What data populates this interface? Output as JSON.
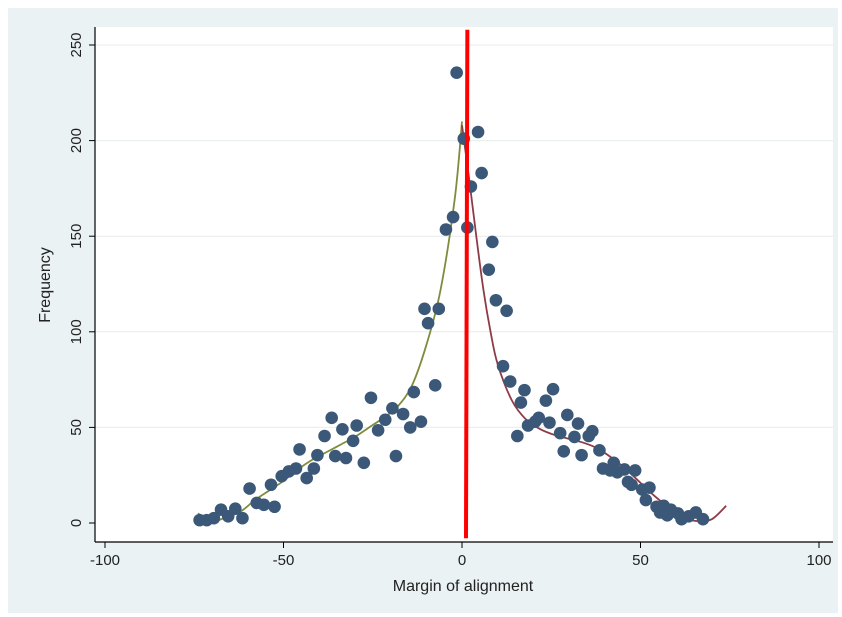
{
  "chart_data": {
    "type": "scatter",
    "title": "",
    "xlabel": "Margin of alignment",
    "ylabel": "Frequency",
    "xlim": [
      -100,
      100
    ],
    "ylim": [
      0,
      250
    ],
    "xticks": [
      -100,
      -50,
      0,
      50,
      100
    ],
    "xtick_labels": [
      "-100",
      "-50",
      "0",
      "50",
      "100"
    ],
    "yticks": [
      0,
      50,
      100,
      150,
      200,
      250
    ],
    "ytick_labels": [
      "0",
      "50",
      "100",
      "150",
      "200",
      "250"
    ],
    "grid": "horizontal",
    "legend": "none",
    "colors": {
      "panel_background": "#eaf2f3",
      "plot_background": "#ffffff",
      "gridline": "#e6ecec",
      "points": "#3b5878",
      "left_fit": "#7f8c3a",
      "right_fit": "#8e3b46",
      "cutoff_line": "#ff0000"
    },
    "points": [
      {
        "x": -73.5,
        "y": 1.5
      },
      {
        "x": -71.5,
        "y": 1.5
      },
      {
        "x": -69.5,
        "y": 2.5
      },
      {
        "x": -67.5,
        "y": 7
      },
      {
        "x": -65.5,
        "y": 3.5
      },
      {
        "x": -63.5,
        "y": 7.5
      },
      {
        "x": -61.5,
        "y": 2.5
      },
      {
        "x": -59.5,
        "y": 18
      },
      {
        "x": -57.5,
        "y": 10.5
      },
      {
        "x": -55.5,
        "y": 9.5
      },
      {
        "x": -53.5,
        "y": 20
      },
      {
        "x": -52.5,
        "y": 8.5
      },
      {
        "x": -50.5,
        "y": 24.5
      },
      {
        "x": -48.5,
        "y": 27
      },
      {
        "x": -46.5,
        "y": 28.5
      },
      {
        "x": -45.5,
        "y": 38.5
      },
      {
        "x": -43.5,
        "y": 23.5
      },
      {
        "x": -41.5,
        "y": 28.5
      },
      {
        "x": -40.5,
        "y": 35.5
      },
      {
        "x": -38.5,
        "y": 45.5
      },
      {
        "x": -36.5,
        "y": 55
      },
      {
        "x": -35.5,
        "y": 35
      },
      {
        "x": -33.5,
        "y": 49
      },
      {
        "x": -32.5,
        "y": 34
      },
      {
        "x": -30.5,
        "y": 43
      },
      {
        "x": -29.5,
        "y": 51
      },
      {
        "x": -27.5,
        "y": 31.5
      },
      {
        "x": -25.5,
        "y": 65.5
      },
      {
        "x": -23.5,
        "y": 48.5
      },
      {
        "x": -21.5,
        "y": 54
      },
      {
        "x": -19.5,
        "y": 60
      },
      {
        "x": -18.5,
        "y": 35
      },
      {
        "x": -16.5,
        "y": 57
      },
      {
        "x": -14.5,
        "y": 50
      },
      {
        "x": -13.5,
        "y": 68.5
      },
      {
        "x": -11.5,
        "y": 53
      },
      {
        "x": -10.5,
        "y": 112
      },
      {
        "x": -9.5,
        "y": 104.5
      },
      {
        "x": -7.5,
        "y": 72
      },
      {
        "x": -6.5,
        "y": 112
      },
      {
        "x": -4.5,
        "y": 153.5
      },
      {
        "x": -2.5,
        "y": 160
      },
      {
        "x": -1.5,
        "y": 235.5
      },
      {
        "x": 0.5,
        "y": 201
      },
      {
        "x": 1.5,
        "y": 154.5
      },
      {
        "x": 2.5,
        "y": 176
      },
      {
        "x": 4.5,
        "y": 204.5
      },
      {
        "x": 5.5,
        "y": 183
      },
      {
        "x": 7.5,
        "y": 132.5
      },
      {
        "x": 8.5,
        "y": 147
      },
      {
        "x": 9.5,
        "y": 116.5
      },
      {
        "x": 11.5,
        "y": 82
      },
      {
        "x": 12.5,
        "y": 111
      },
      {
        "x": 13.5,
        "y": 74
      },
      {
        "x": 15.5,
        "y": 45.5
      },
      {
        "x": 16.5,
        "y": 63
      },
      {
        "x": 17.5,
        "y": 69.5
      },
      {
        "x": 18.5,
        "y": 51
      },
      {
        "x": 20.5,
        "y": 53
      },
      {
        "x": 21.5,
        "y": 55
      },
      {
        "x": 23.5,
        "y": 64
      },
      {
        "x": 24.5,
        "y": 52.5
      },
      {
        "x": 25.5,
        "y": 70
      },
      {
        "x": 27.5,
        "y": 47
      },
      {
        "x": 28.5,
        "y": 37.5
      },
      {
        "x": 29.5,
        "y": 56.5
      },
      {
        "x": 31.5,
        "y": 45
      },
      {
        "x": 32.5,
        "y": 52
      },
      {
        "x": 33.5,
        "y": 35.5
      },
      {
        "x": 35.5,
        "y": 45.5
      },
      {
        "x": 36.5,
        "y": 48
      },
      {
        "x": 38.5,
        "y": 38
      },
      {
        "x": 39.5,
        "y": 28.5
      },
      {
        "x": 41.5,
        "y": 27.5
      },
      {
        "x": 42.5,
        "y": 31.5
      },
      {
        "x": 43.5,
        "y": 26.5
      },
      {
        "x": 45.5,
        "y": 28
      },
      {
        "x": 46.5,
        "y": 21.5
      },
      {
        "x": 47.5,
        "y": 20
      },
      {
        "x": 48.5,
        "y": 27.5
      },
      {
        "x": 50.5,
        "y": 17.5
      },
      {
        "x": 51.5,
        "y": 12
      },
      {
        "x": 52.5,
        "y": 18.5
      },
      {
        "x": 54.5,
        "y": 8.5
      },
      {
        "x": 55.5,
        "y": 5.5
      },
      {
        "x": 56.5,
        "y": 9
      },
      {
        "x": 57.5,
        "y": 4
      },
      {
        "x": 58.5,
        "y": 7
      },
      {
        "x": 60.5,
        "y": 5
      },
      {
        "x": 61.5,
        "y": 2
      },
      {
        "x": 63.5,
        "y": 3.5
      },
      {
        "x": 65.5,
        "y": 5.5
      },
      {
        "x": 67.5,
        "y": 2
      }
    ],
    "fit_left": {
      "x": [
        -74,
        -70,
        -66,
        -62,
        -58,
        -54,
        -50,
        -46,
        -42,
        -38,
        -34,
        -30,
        -26,
        -22,
        -18,
        -14,
        -10,
        -6,
        -2,
        0
      ],
      "y": [
        5,
        1,
        3,
        6,
        12,
        17,
        22,
        28,
        33,
        37,
        41,
        45,
        50,
        55,
        61,
        72,
        93,
        122,
        170,
        210
      ]
    },
    "fit_right": {
      "x": [
        0,
        2,
        4,
        6,
        8,
        10,
        14,
        18,
        22,
        26,
        30,
        34,
        38,
        42,
        46,
        50,
        54,
        58,
        62,
        66,
        70,
        74
      ],
      "y": [
        208,
        180,
        150,
        122,
        100,
        83,
        64,
        54,
        49,
        46,
        44,
        42,
        39,
        34,
        28,
        21,
        14,
        8,
        3,
        1,
        2,
        9
      ]
    },
    "cutoff_line": {
      "x": [
        0,
        1.5
      ],
      "y": [
        -8,
        258
      ]
    }
  }
}
